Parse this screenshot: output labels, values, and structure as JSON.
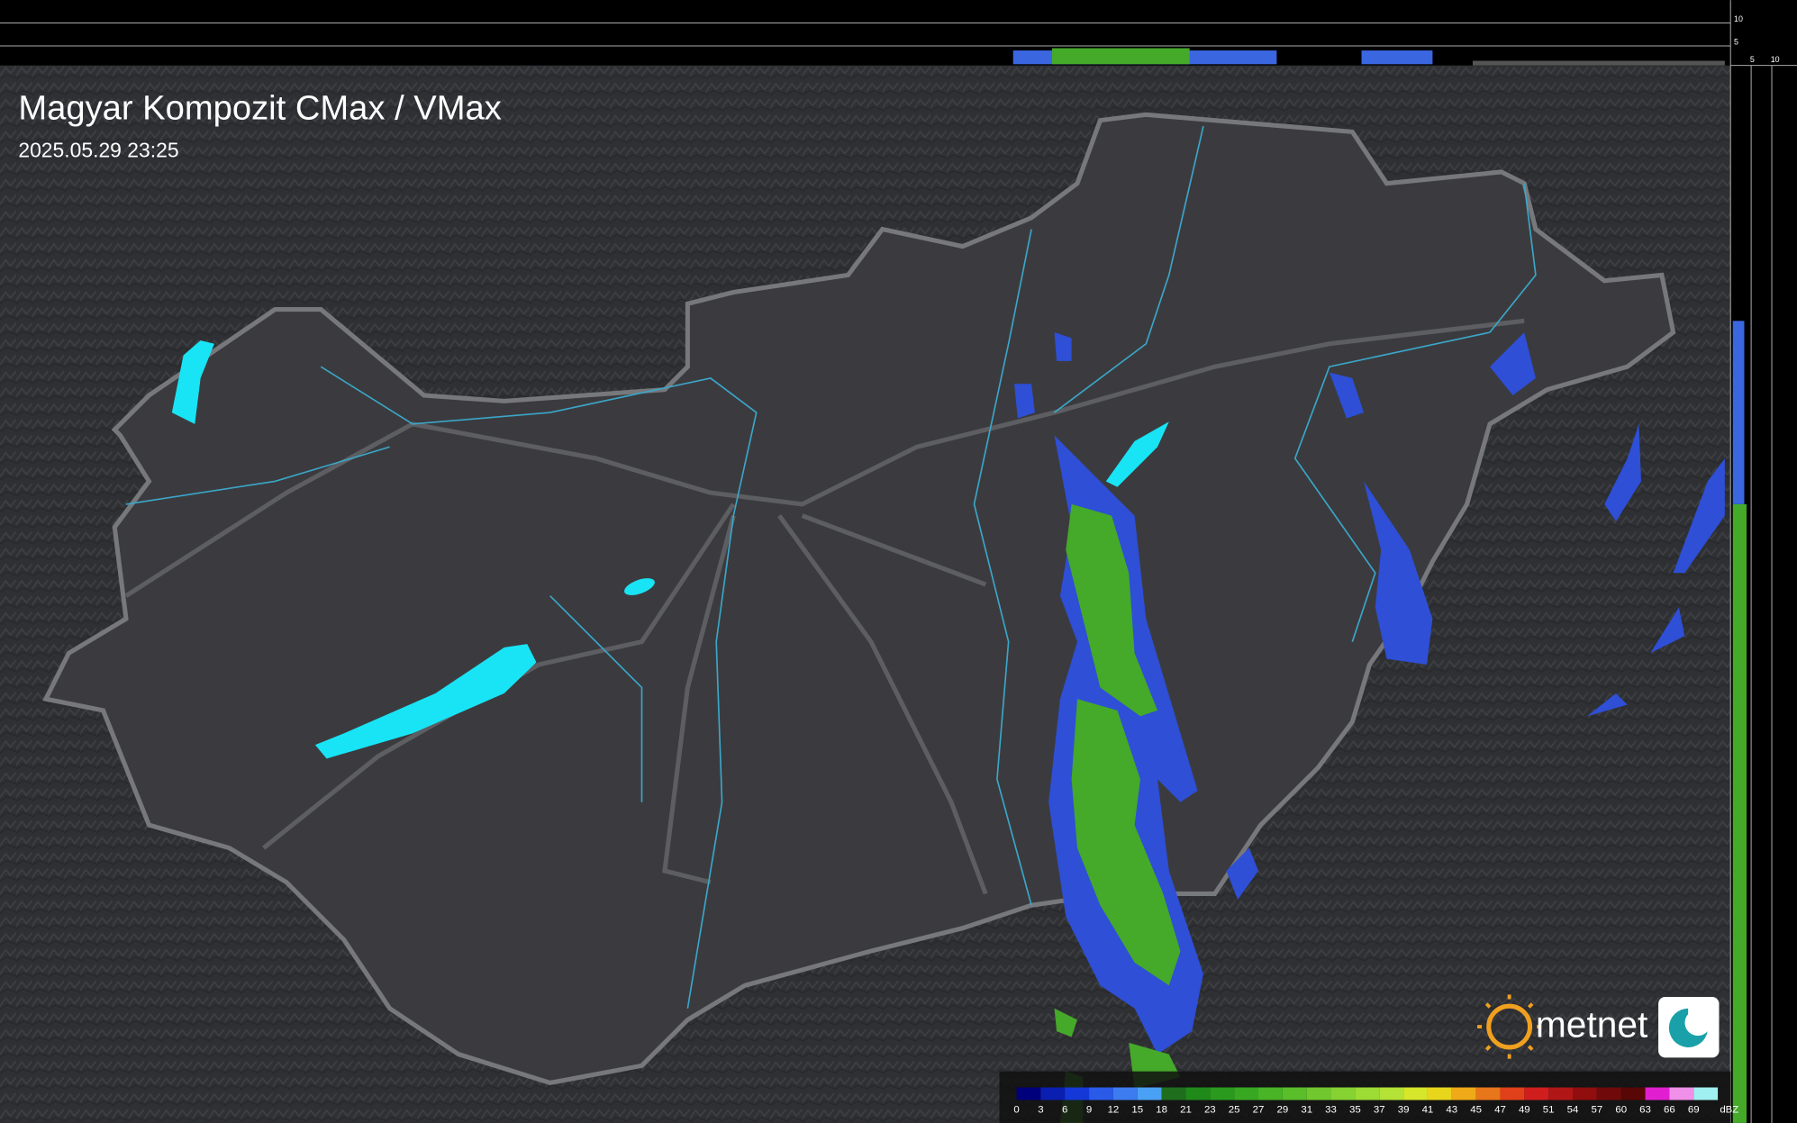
{
  "header": {
    "title": "Magyar Kompozit CMax / VMax",
    "timestamp": "2025.05.29 23:25"
  },
  "top_profile_scale": [
    10,
    5
  ],
  "side_profile_scale": [
    5,
    10
  ],
  "legend": {
    "ticks": [
      0,
      3,
      6,
      9,
      12,
      15,
      18,
      21,
      23,
      25,
      27,
      29,
      31,
      33,
      35,
      37,
      39,
      41,
      43,
      45,
      47,
      49,
      51,
      54,
      57,
      60,
      63,
      66,
      69
    ],
    "colors": [
      "#00007a",
      "#0a1fb0",
      "#1438d8",
      "#2a5ae8",
      "#3c7cf0",
      "#4aa0f4",
      "#1e6e1e",
      "#1f8a1a",
      "#2a9a1e",
      "#38a822",
      "#48b426",
      "#5abe2a",
      "#70c82e",
      "#86d232",
      "#9cdc34",
      "#b4e236",
      "#d6e62a",
      "#e8d61c",
      "#eeaa18",
      "#e8761a",
      "#e0401a",
      "#d01e1e",
      "#b01616",
      "#900e0e",
      "#700a0a",
      "#580606",
      "#e020d0",
      "#f090e8",
      "#a0f0f0"
    ],
    "unit": "dBZ"
  },
  "brand": {
    "name": "metnet"
  }
}
